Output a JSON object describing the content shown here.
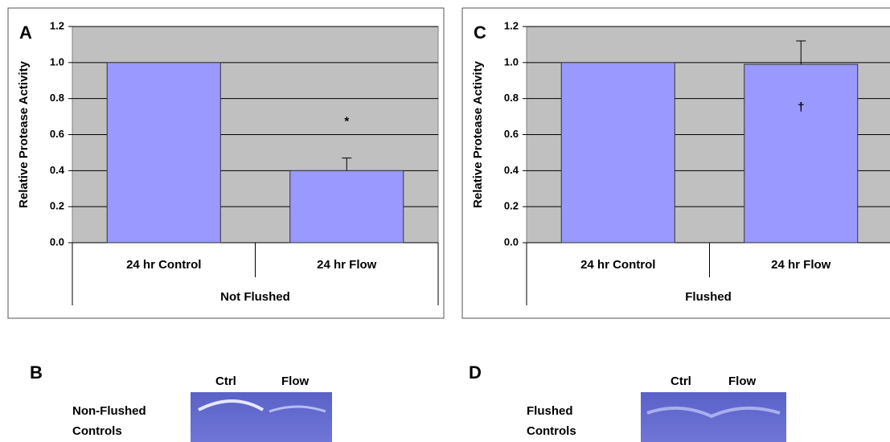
{
  "chart_data": [
    {
      "type": "bar",
      "panel": "A",
      "ylabel": "Relative Protease Activity",
      "categories": [
        "24 hr Control",
        "24 hr Flow"
      ],
      "group": "Not Flushed",
      "values": [
        1.0,
        0.4
      ],
      "errors": [
        null,
        0.07
      ],
      "annotations": [
        null,
        "*"
      ],
      "color": "#9999ff",
      "ylim": [
        0,
        1.2
      ],
      "yticks": [
        {
          "value": 0,
          "label": "0.0"
        },
        0.2,
        0.4,
        0.6,
        0.8,
        {
          "value": 1,
          "label": "1.0"
        },
        1.2
      ],
      "grid": true
    },
    {
      "type": "bar",
      "panel": "C",
      "ylabel": "Relative Protease Activity",
      "categories": [
        "24 hr Control",
        "24 hr Flow"
      ],
      "group": "Flushed",
      "values": [
        1.0,
        0.99
      ],
      "errors": [
        null,
        0.13
      ],
      "annotations": [
        null,
        "†"
      ],
      "color": "#9999ff",
      "ylim": [
        0,
        1.2
      ],
      "yticks": [
        {
          "value": 0,
          "label": "0.0"
        },
        0.2,
        0.4,
        0.6,
        0.8,
        {
          "value": 1,
          "label": "1.0"
        },
        1.2
      ],
      "grid": true
    }
  ],
  "gels": [
    {
      "panel": "B",
      "lanes": [
        "Ctrl",
        "Flow"
      ],
      "caption": [
        "Non-Flushed",
        "Controls"
      ]
    },
    {
      "panel": "D",
      "lanes": [
        "Ctrl",
        "Flow"
      ],
      "caption": [
        "Flushed",
        "Controls"
      ]
    }
  ]
}
